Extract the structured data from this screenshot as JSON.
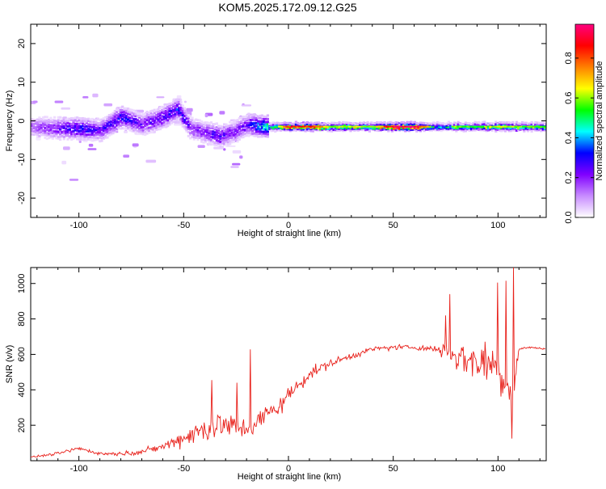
{
  "chart_data": [
    {
      "type": "heatmap",
      "title": "KOM5.2025.172.09.12.G25",
      "xlabel": "Height of straight line (km)",
      "ylabel": "Frequency (Hz)",
      "xlim": [
        -123,
        123
      ],
      "ylim": [
        -25,
        25
      ],
      "xticks": [
        -100,
        -50,
        0,
        50,
        100
      ],
      "yticks": [
        20,
        10,
        0,
        -10,
        -20
      ],
      "colorbar": {
        "label": "Normalized spectral amplitude",
        "range": [
          0,
          0.97
        ],
        "ticks": [
          0.0,
          0.2,
          0.4,
          0.6,
          0.8
        ],
        "colors": [
          "#ffffff",
          "#c88cff",
          "#8000ff",
          "#0000ff",
          "#00ffff",
          "#00ff00",
          "#ffff00",
          "#ff8000",
          "#ff0000",
          "#ff0080"
        ]
      },
      "ridge": {
        "x": [
          -123,
          -110,
          -100,
          -90,
          -80,
          -70,
          -60,
          -53,
          -47,
          -40,
          -33,
          -27,
          -20,
          -12,
          -5,
          0,
          10,
          20,
          30,
          40,
          50,
          60,
          70,
          80,
          90,
          100,
          110,
          123
        ],
        "frequency": [
          -1.5,
          -2,
          -2,
          -2.5,
          1,
          -1,
          1,
          3,
          -2,
          -3,
          -4,
          -3,
          -1,
          -1.5,
          -1.5,
          -1.5,
          -1.5,
          -1.5,
          -1.5,
          -1.5,
          -1.5,
          -1.5,
          -1.5,
          -1.5,
          -1.5,
          -1.5,
          -1.5,
          -1.5
        ],
        "amplitude": [
          0.15,
          0.22,
          0.3,
          0.25,
          0.3,
          0.22,
          0.28,
          0.32,
          0.2,
          0.22,
          0.28,
          0.2,
          0.25,
          0.45,
          0.6,
          0.8,
          0.8,
          0.55,
          0.6,
          0.55,
          0.9,
          0.9,
          0.4,
          0.55,
          0.5,
          0.6,
          0.55,
          0.5
        ]
      }
    },
    {
      "type": "line",
      "xlabel": "Height of straight line (km)",
      "ylabel": "SNR (v/v)",
      "xlim": [
        -123,
        123
      ],
      "ylim": [
        0,
        1090
      ],
      "xticks": [
        -100,
        -50,
        0,
        50,
        100
      ],
      "yticks": [
        200,
        400,
        600,
        800,
        1000
      ],
      "color": "#e8201a",
      "series": [
        {
          "x": [
            -123,
            -110,
            -100,
            -90,
            -80,
            -70,
            -60,
            -50,
            -40,
            -35,
            -30,
            -25,
            -20,
            -15,
            -10,
            -5,
            0,
            5,
            10,
            20,
            30,
            40,
            50,
            60,
            70,
            75,
            80,
            85,
            90,
            95,
            100,
            105,
            108,
            110,
            115,
            123
          ],
          "y": [
            20,
            40,
            70,
            40,
            40,
            50,
            80,
            130,
            180,
            200,
            200,
            190,
            180,
            210,
            270,
            300,
            370,
            430,
            490,
            550,
            590,
            630,
            640,
            640,
            630,
            620,
            600,
            570,
            560,
            560,
            530,
            430,
            450,
            630,
            640,
            630
          ],
          "spread": [
            5,
            15,
            20,
            15,
            20,
            25,
            40,
            80,
            130,
            160,
            130,
            110,
            100,
            110,
            90,
            90,
            80,
            70,
            60,
            40,
            30,
            25,
            25,
            25,
            30,
            120,
            180,
            180,
            200,
            200,
            220,
            280,
            250,
            10,
            8,
            8
          ]
        }
      ],
      "spikes": [
        {
          "x": -36.5,
          "y": 455
        },
        {
          "x": -24.5,
          "y": 440
        },
        {
          "x": -18,
          "y": 628
        },
        {
          "x": 75,
          "y": 820
        },
        {
          "x": 77,
          "y": 940
        },
        {
          "x": 100,
          "y": 1005
        },
        {
          "x": 104,
          "y": 1015
        },
        {
          "x": 107.5,
          "y": 1090
        },
        {
          "x": 106.5,
          "y": 125
        }
      ]
    }
  ]
}
